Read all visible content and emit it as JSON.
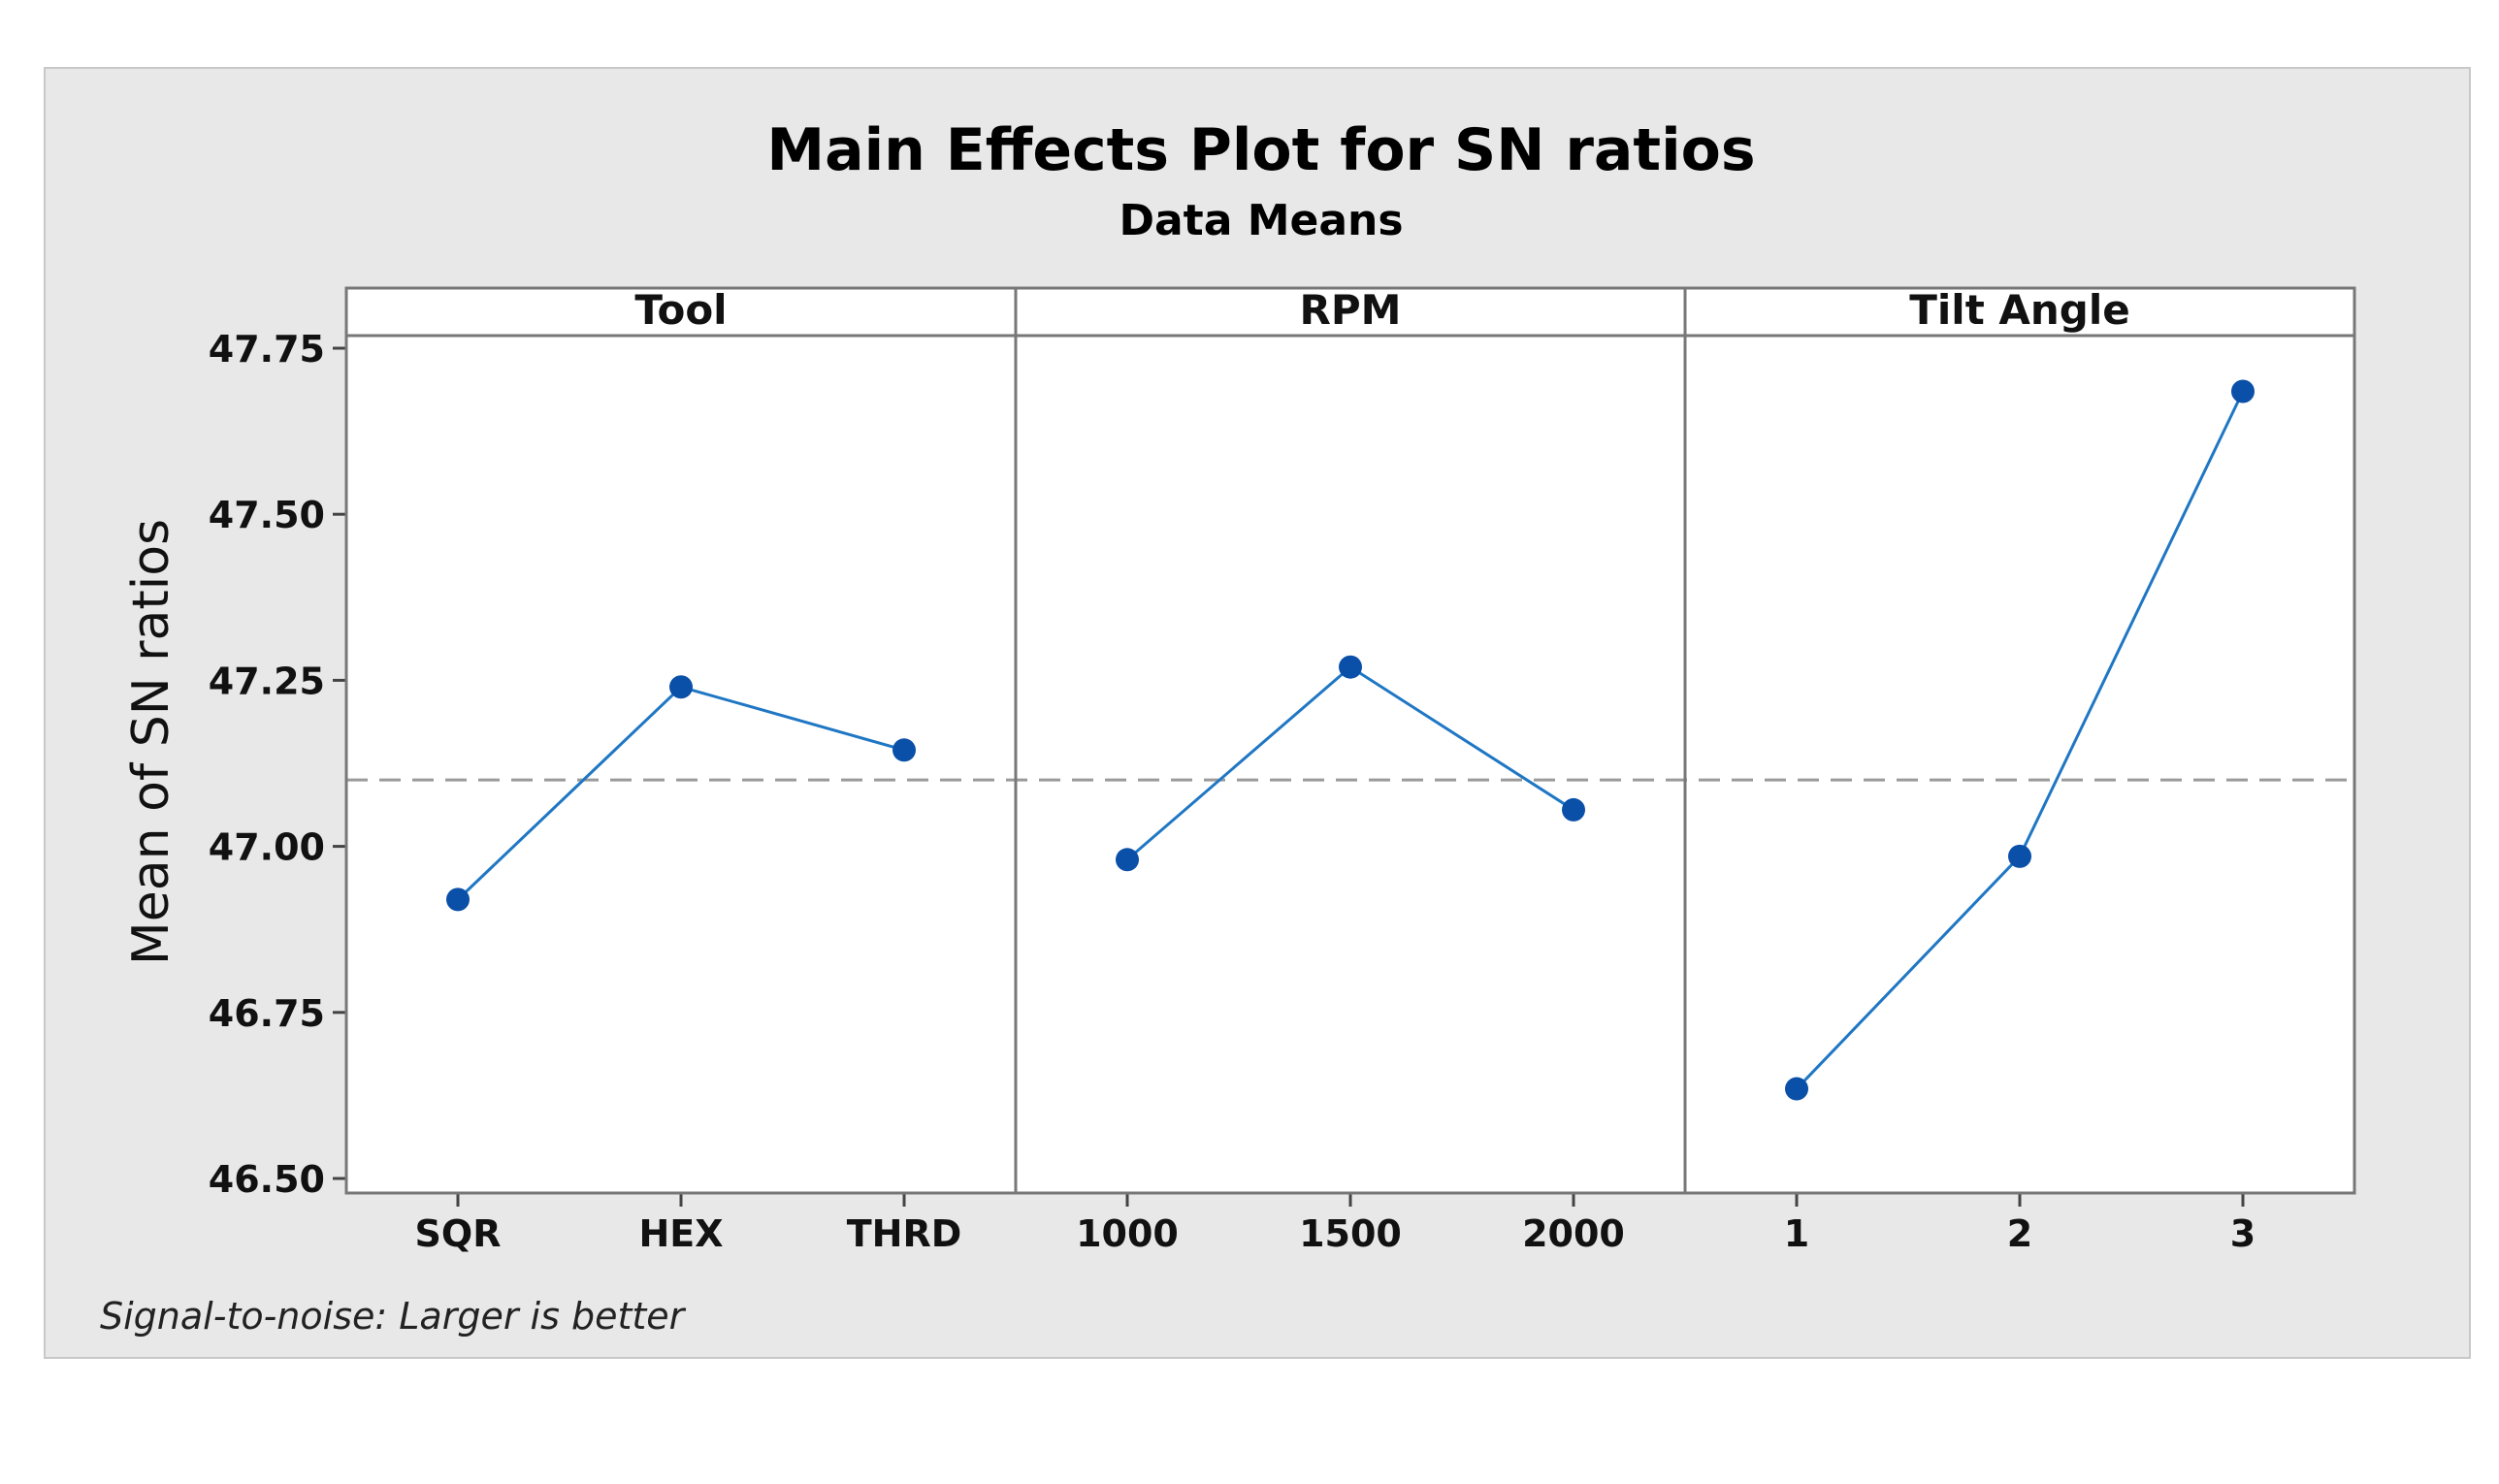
{
  "chart_data": {
    "type": "line",
    "title": "Main Effects Plot for SN ratios",
    "subtitle": "Data Means",
    "ylabel": "Mean of SN ratios",
    "ylim": [
      46.5,
      47.75
    ],
    "yticks": [
      46.5,
      46.75,
      47.0,
      47.25,
      47.5,
      47.75
    ],
    "ytick_labels": [
      "46.50",
      "46.75",
      "47.00",
      "47.25",
      "47.50",
      "47.75"
    ],
    "reference_line": 47.1,
    "footnote": "Signal-to-noise: Larger is better",
    "colors": {
      "background": "#e8e8e8",
      "plot": "#ffffff",
      "line": "#1f77c4",
      "marker": "#0a4fa8",
      "reference": "#9a9a9a"
    },
    "panels": [
      {
        "name": "Tool",
        "categories": [
          "SQR",
          "HEX",
          "THRD"
        ],
        "values": [
          46.92,
          47.24,
          47.145
        ]
      },
      {
        "name": "RPM",
        "categories": [
          "1000",
          "1500",
          "2000"
        ],
        "values": [
          46.98,
          47.27,
          47.055
        ]
      },
      {
        "name": "Tilt Angle",
        "categories": [
          "1",
          "2",
          "3"
        ],
        "values": [
          46.635,
          46.985,
          47.685
        ]
      }
    ]
  }
}
